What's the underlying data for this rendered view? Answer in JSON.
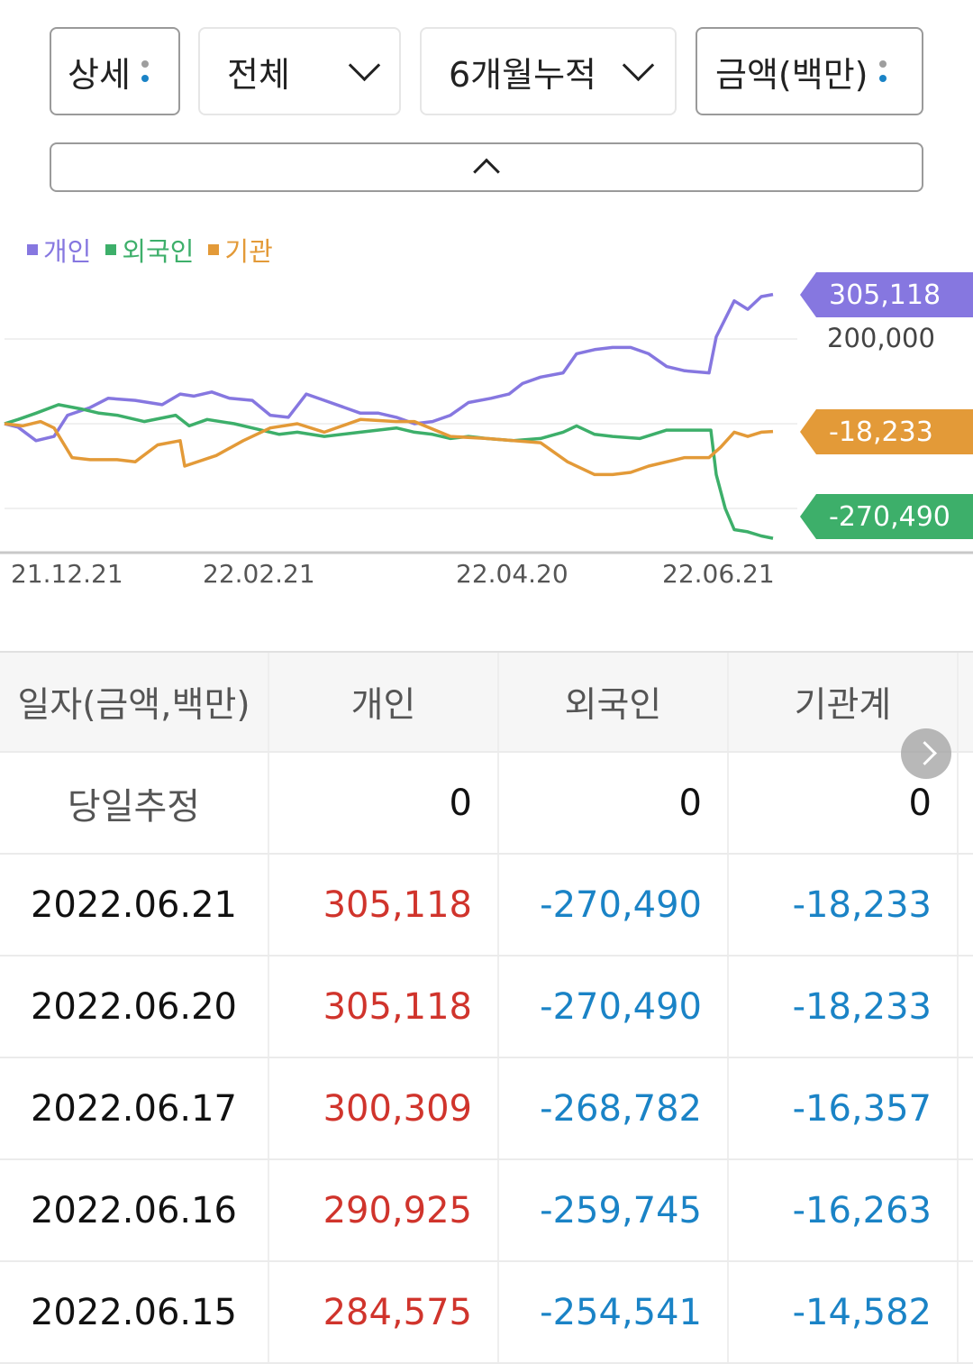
{
  "filters": {
    "detail": "상세",
    "scope": "전체",
    "period": "6개월누적",
    "unit": "금액(백만)",
    "dot_colors": [
      "#9e9e9e",
      "#1a83c6"
    ]
  },
  "legend": [
    {
      "label": "개인",
      "color": "#8677e0"
    },
    {
      "label": "외국인",
      "color": "#3daf6a"
    },
    {
      "label": "기관",
      "color": "#e39a38"
    }
  ],
  "chart_data": {
    "type": "line",
    "title": "",
    "xlabel": "",
    "ylabel": "금액(백만)",
    "x_ticks": [
      "21.12.21",
      "22.02.21",
      "22.04.20",
      "22.06.21"
    ],
    "y_ticks": [
      200000
    ],
    "gridlines_y": [
      200000,
      0,
      -200000
    ],
    "ylim": [
      -300000,
      330000
    ],
    "x_range": [
      "21.12.21",
      "22.06.21"
    ],
    "end_labels": [
      {
        "series": "개인",
        "value": "305,118",
        "color": "#8677e0"
      },
      {
        "series": "기관",
        "value": "-18,233",
        "color": "#e39a38"
      },
      {
        "series": "외국인",
        "value": "-270,490",
        "color": "#3daf6a"
      }
    ],
    "series": [
      {
        "name": "개인",
        "color": "#8677e0",
        "x": [
          5,
          20,
          40,
          60,
          75,
          100,
          120,
          150,
          180,
          200,
          215,
          235,
          255,
          280,
          300,
          320,
          340,
          360,
          380,
          400,
          420,
          440,
          460,
          480,
          500,
          520,
          545,
          565,
          580,
          600,
          625,
          640,
          660,
          680,
          700,
          720,
          740,
          760,
          787,
          795,
          815,
          830,
          845,
          858
        ],
        "values": [
          0,
          -8000,
          -40000,
          -30000,
          20000,
          38000,
          60000,
          55000,
          45000,
          70000,
          65000,
          75000,
          60000,
          55000,
          20000,
          15000,
          70000,
          55000,
          40000,
          25000,
          25000,
          15000,
          0,
          5000,
          20000,
          50000,
          60000,
          70000,
          95000,
          110000,
          120000,
          165000,
          175000,
          180000,
          180000,
          165000,
          135000,
          125000,
          120000,
          205000,
          290000,
          270000,
          300000,
          305118
        ]
      },
      {
        "name": "외국인",
        "color": "#3daf6a",
        "x": [
          5,
          20,
          40,
          65,
          90,
          110,
          130,
          160,
          195,
          210,
          230,
          260,
          290,
          310,
          330,
          360,
          400,
          440,
          460,
          480,
          500,
          520,
          540,
          570,
          600,
          625,
          640,
          660,
          680,
          710,
          740,
          760,
          789,
          795,
          805,
          815,
          830,
          845,
          858
        ],
        "values": [
          0,
          10000,
          25000,
          45000,
          35000,
          25000,
          20000,
          5000,
          20000,
          -5000,
          10000,
          0,
          -15000,
          -25000,
          -20000,
          -30000,
          -20000,
          -10000,
          -20000,
          -25000,
          -35000,
          -30000,
          -35000,
          -40000,
          -35000,
          -20000,
          -5000,
          -25000,
          -30000,
          -35000,
          -15000,
          -15000,
          -15000,
          -120000,
          -200000,
          -250000,
          -255000,
          -265000,
          -270490
        ]
      },
      {
        "name": "기관",
        "color": "#e39a38",
        "x": [
          5,
          25,
          45,
          60,
          80,
          100,
          130,
          150,
          175,
          200,
          205,
          240,
          270,
          300,
          330,
          360,
          400,
          440,
          460,
          500,
          540,
          570,
          600,
          630,
          660,
          680,
          700,
          720,
          760,
          787,
          800,
          815,
          830,
          845,
          858
        ],
        "values": [
          0,
          -5000,
          5000,
          -10000,
          -80000,
          -85000,
          -85000,
          -90000,
          -50000,
          -40000,
          -100000,
          -75000,
          -40000,
          -10000,
          0,
          -20000,
          10000,
          5000,
          5000,
          -30000,
          -35000,
          -40000,
          -45000,
          -90000,
          -120000,
          -120000,
          -115000,
          -100000,
          -80000,
          -80000,
          -55000,
          -20000,
          -30000,
          -20000,
          -18233
        ]
      }
    ]
  },
  "table": {
    "headers": [
      "일자(금액,백만)",
      "개인",
      "외국인",
      "기관계"
    ],
    "estimate_row": {
      "label": "당일추정",
      "values": [
        "0",
        "0",
        "0"
      ]
    },
    "rows": [
      {
        "date": "2022.06.21",
        "individual": "305,118",
        "foreign": "-270,490",
        "institution": "-18,233"
      },
      {
        "date": "2022.06.20",
        "individual": "305,118",
        "foreign": "-270,490",
        "institution": "-18,233"
      },
      {
        "date": "2022.06.17",
        "individual": "300,309",
        "foreign": "-268,782",
        "institution": "-16,357"
      },
      {
        "date": "2022.06.16",
        "individual": "290,925",
        "foreign": "-259,745",
        "institution": "-16,263"
      },
      {
        "date": "2022.06.15",
        "individual": "284,575",
        "foreign": "-254,541",
        "institution": "-14,582"
      }
    ],
    "colors": {
      "positive": "#d0342c",
      "negative": "#1a83c6"
    }
  }
}
